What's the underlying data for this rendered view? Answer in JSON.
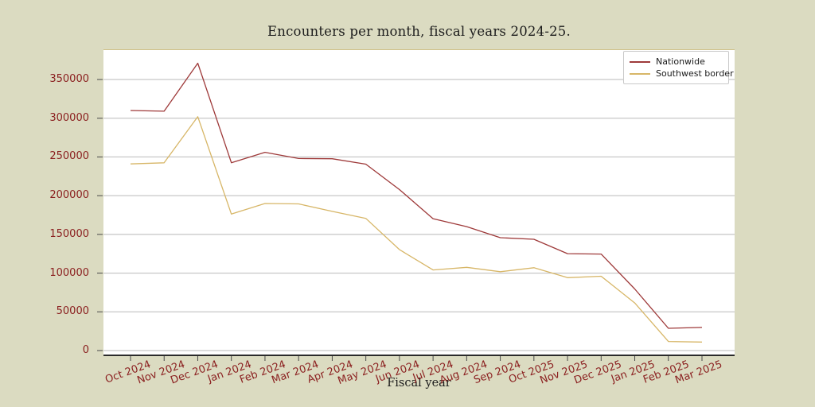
{
  "figure": {
    "background_color": "#dbdbc1",
    "plot_background": "#ffffff",
    "grid_color": "#b9b9b9",
    "top_spine_color": "#cfc189",
    "bottom_spine_color": "#2b2b2b",
    "tick_mark_color": "#4a4a4a",
    "tick_label_color": "#8b2020",
    "title_color": "#1c1c1c"
  },
  "chart_data": {
    "type": "line",
    "title": "Encounters per month, fiscal years 2024-25.",
    "xlabel": "Fiscal year",
    "ylabel": "",
    "grid": "horizontal",
    "legend_position": "upper right",
    "categories": [
      "Oct 2024",
      "Nov 2024",
      "Dec 2024",
      "Jan 2024",
      "Feb 2024",
      "Mar 2024",
      "Apr 2024",
      "May 2024",
      "Jun 2024",
      "Jul 2024",
      "Aug 2024",
      "Sep 2024",
      "Oct 2025",
      "Nov 2025",
      "Dec 2025",
      "Jan 2025",
      "Feb 2025",
      "Mar 2025"
    ],
    "series": [
      {
        "name": "Nationwide",
        "color": "#9e3939",
        "values": [
          310000,
          309000,
          371000,
          242500,
          256000,
          248000,
          247700,
          240700,
          207800,
          170300,
          160000,
          145700,
          143700,
          125100,
          124600,
          79500,
          28700,
          29900
        ]
      },
      {
        "name": "Southwest border",
        "color": "#d7b667",
        "values": [
          241000,
          242400,
          302000,
          176200,
          189900,
          189400,
          179700,
          170700,
          130400,
          104100,
          107500,
          101800,
          106900,
          94100,
          96000,
          61500,
          11700,
          11000
        ]
      }
    ],
    "yticks": [
      0,
      50000,
      100000,
      150000,
      200000,
      250000,
      300000,
      350000
    ],
    "ylim": [
      0,
      390000
    ]
  }
}
